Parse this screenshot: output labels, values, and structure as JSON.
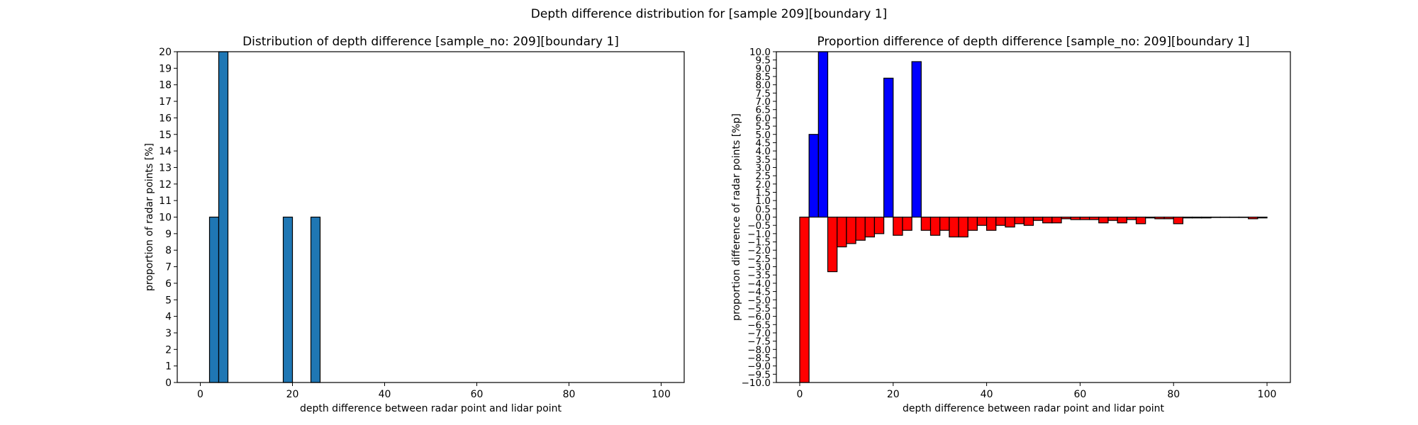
{
  "figure": {
    "suptitle": "Depth difference distribution for [sample 209][boundary 1]"
  },
  "chart_data": [
    {
      "type": "bar",
      "title": "Distribution of depth difference [sample_no: 209][boundary 1]",
      "xlabel": "depth difference between radar point and lidar point",
      "ylabel": "proportion of radar points [%]",
      "xlim": [
        -5,
        105
      ],
      "ylim": [
        0,
        20
      ],
      "xticks": [
        0,
        20,
        40,
        60,
        80,
        100
      ],
      "yticks": [
        0,
        1,
        2,
        3,
        4,
        5,
        6,
        7,
        8,
        9,
        10,
        11,
        12,
        13,
        14,
        15,
        16,
        17,
        18,
        19,
        20
      ],
      "bin_width": 2,
      "bar_color": "#1f77b4",
      "bins": [
        {
          "x": 2,
          "value": 10
        },
        {
          "x": 4,
          "value": 20
        },
        {
          "x": 18,
          "value": 10
        },
        {
          "x": 24,
          "value": 10
        }
      ],
      "grid": false
    },
    {
      "type": "bar",
      "title": "Proportion difference of depth difference [sample_no: 209][boundary 1]",
      "xlabel": "depth difference between radar point and lidar point",
      "ylabel": "proportion difference of radar points [%p]",
      "xlim": [
        -5,
        105
      ],
      "ylim": [
        -10,
        10
      ],
      "xticks": [
        0,
        20,
        40,
        60,
        80,
        100
      ],
      "ytick_step": 0.5,
      "bin_width": 2,
      "positive_color": "#0000ff",
      "negative_color": "#ff0000",
      "bins_start": 0,
      "values": [
        -10.0,
        5.0,
        10.0,
        -3.3,
        -1.8,
        -1.6,
        -1.4,
        -1.2,
        -1.0,
        8.4,
        -1.1,
        -0.8,
        9.4,
        -0.8,
        -1.1,
        -0.8,
        -1.2,
        -1.2,
        -0.8,
        -0.5,
        -0.8,
        -0.5,
        -0.6,
        -0.4,
        -0.5,
        -0.2,
        -0.35,
        -0.35,
        -0.1,
        -0.15,
        -0.15,
        -0.15,
        -0.35,
        -0.2,
        -0.35,
        -0.15,
        -0.4,
        -0.05,
        -0.1,
        -0.1,
        -0.4,
        -0.05,
        -0.05,
        -0.05,
        -0.02,
        -0.02,
        -0.02,
        -0.02,
        -0.1,
        -0.05
      ],
      "grid": false
    }
  ]
}
